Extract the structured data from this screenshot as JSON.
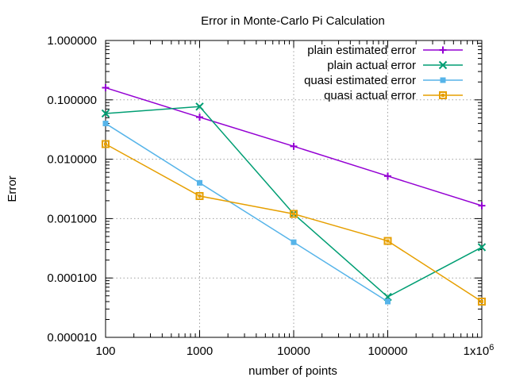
{
  "chart_data": {
    "type": "line",
    "title": "Error in Monte-Carlo Pi Calculation",
    "xlabel": "number of points",
    "ylabel": "Error",
    "x_scale": "log",
    "y_scale": "log",
    "xlim": [
      100,
      1000000
    ],
    "ylim": [
      1e-05,
      1
    ],
    "grid": true,
    "legend_position": "top-right",
    "x_ticks": [
      {
        "value": 100,
        "label": "100"
      },
      {
        "value": 1000,
        "label": "1000"
      },
      {
        "value": 10000,
        "label": "10000"
      },
      {
        "value": 100000,
        "label": "100000"
      },
      {
        "value": 1000000,
        "label": "1x10",
        "sup": "6"
      }
    ],
    "y_ticks": [
      {
        "value": 1,
        "label": "1.000000"
      },
      {
        "value": 0.1,
        "label": "0.100000"
      },
      {
        "value": 0.01,
        "label": "0.010000"
      },
      {
        "value": 0.001,
        "label": "0.001000"
      },
      {
        "value": 0.0001,
        "label": "0.000100"
      },
      {
        "value": 1e-05,
        "label": "0.000010"
      }
    ],
    "x": [
      100,
      1000,
      10000,
      100000,
      1000000
    ],
    "series": [
      {
        "name": "plain estimated error",
        "color": "#9400d3",
        "marker": "plus",
        "values": [
          0.16,
          0.051,
          0.0165,
          0.0052,
          0.00165
        ]
      },
      {
        "name": "plain actual error",
        "color": "#009e73",
        "marker": "cross",
        "values": [
          0.059,
          0.077,
          0.0012,
          4.8e-05,
          0.00033
        ]
      },
      {
        "name": "quasi estimated error",
        "color": "#56b4e9",
        "marker": "filled-square",
        "values": [
          0.04,
          0.004,
          0.0004,
          4e-05,
          null
        ]
      },
      {
        "name": "quasi actual error",
        "color": "#e69f00",
        "marker": "open-square",
        "values": [
          0.018,
          0.0024,
          0.0012,
          0.00042,
          4e-05
        ]
      }
    ]
  }
}
